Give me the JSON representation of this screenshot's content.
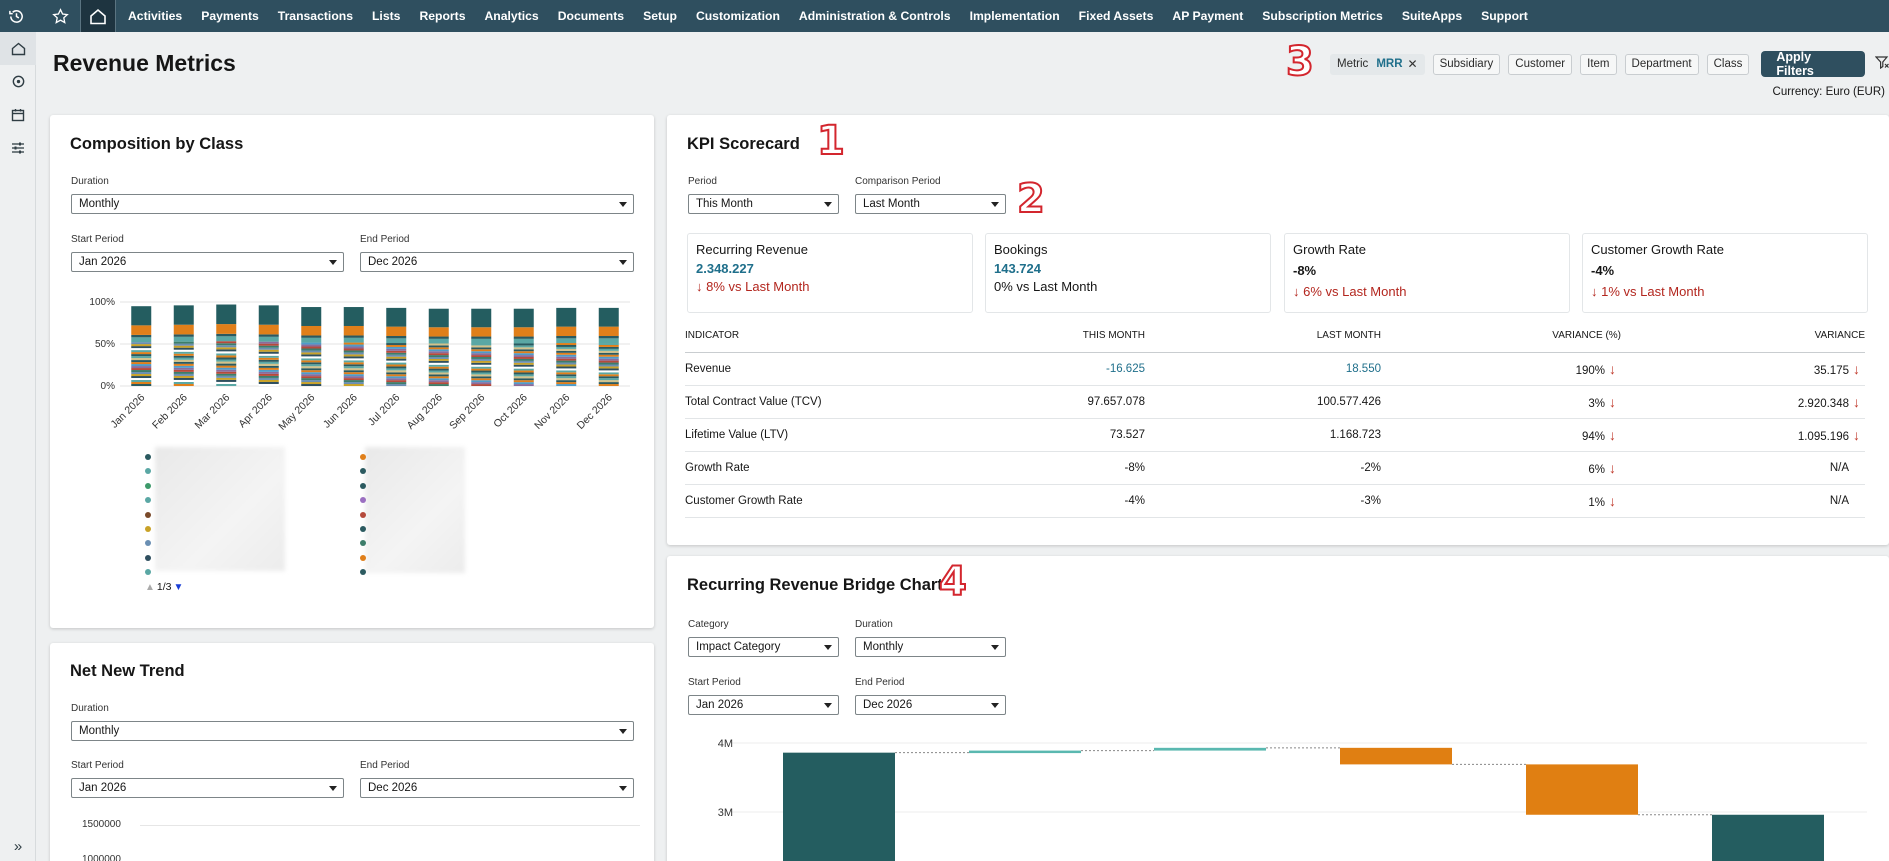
{
  "nav": {
    "menu": [
      "Activities",
      "Payments",
      "Transactions",
      "Lists",
      "Reports",
      "Analytics",
      "Documents",
      "Setup",
      "Customization",
      "Administration & Controls",
      "Implementation",
      "Fixed Assets",
      "AP Payment",
      "Subscription Metrics",
      "SuiteApps",
      "Support"
    ]
  },
  "header": {
    "title": "Revenue Metrics",
    "filters": {
      "metric_label": "Metric",
      "metric_value": "MRR",
      "chips": [
        "Subsidiary",
        "Customer",
        "Item",
        "Department",
        "Class"
      ],
      "apply_label": "Apply Filters"
    },
    "currency": "Currency: Euro (EUR)"
  },
  "annotations": [
    "1",
    "2",
    "3",
    "4"
  ],
  "composition": {
    "title": "Composition by Class",
    "duration_label": "Duration",
    "duration_value": "Monthly",
    "start_label": "Start Period",
    "start_value": "Jan 2026",
    "end_label": "End Period",
    "end_value": "Dec 2026",
    "pager": "1/3"
  },
  "net_new": {
    "title": "Net New Trend",
    "duration_label": "Duration",
    "duration_value": "Monthly",
    "start_label": "Start Period",
    "start_value": "Jan 2026",
    "end_label": "End Period",
    "end_value": "Dec 2026",
    "y_ticks": [
      "1500000",
      "1000000"
    ]
  },
  "kpi": {
    "title": "KPI Scorecard",
    "period_label": "Period",
    "period_value": "This Month",
    "comparison_label": "Comparison Period",
    "comparison_value": "Last Month",
    "cards": [
      {
        "title": "Recurring Revenue",
        "value": "2.348.227",
        "change": "↓ 8% vs Last Month"
      },
      {
        "title": "Bookings",
        "value": "143.724",
        "change": "0% vs Last Month"
      },
      {
        "title": "Growth Rate",
        "value": "-8%",
        "change": "↓ 6% vs Last Month"
      },
      {
        "title": "Customer Growth Rate",
        "value": "-4%",
        "change": "↓ 1% vs Last Month"
      }
    ],
    "columns": [
      "Indicator",
      "This Month",
      "Last Month",
      "Variance (%)",
      "Variance"
    ],
    "rows": [
      {
        "name": "Revenue",
        "this": "-16.625",
        "last": "18.550",
        "var_pct": "190%",
        "var": "35.175"
      },
      {
        "name": "Total Contract Value (TCV)",
        "this": "97.657.078",
        "last": "100.577.426",
        "var_pct": "3%",
        "var": "2.920.348"
      },
      {
        "name": "Lifetime Value (LTV)",
        "this": "73.527",
        "last": "1.168.723",
        "var_pct": "94%",
        "var": "1.095.196"
      },
      {
        "name": "Growth Rate",
        "this": "-8%",
        "last": "-2%",
        "var_pct": "6%",
        "var": "N/A"
      },
      {
        "name": "Customer Growth Rate",
        "this": "-4%",
        "last": "-3%",
        "var_pct": "1%",
        "var": "N/A"
      }
    ]
  },
  "bridge": {
    "title": "Recurring Revenue Bridge Chart",
    "category_label": "Category",
    "category_value": "Impact Category",
    "duration_label": "Duration",
    "duration_value": "Monthly",
    "start_label": "Start Period",
    "start_value": "Jan 2026",
    "end_label": "End Period",
    "end_value": "Dec 2026",
    "y_ticks": [
      "4M",
      "3M"
    ]
  },
  "chart_data": [
    {
      "type": "bar",
      "stacked": true,
      "categories": [
        "Jan 2026",
        "Feb 2026",
        "Mar 2026",
        "Apr 2026",
        "May 2026",
        "Jun 2026",
        "Jul 2026",
        "Aug 2026",
        "Sep 2026",
        "Oct 2026",
        "Nov 2026",
        "Dec 2026"
      ],
      "y_ticks": [
        "100%",
        "50%",
        "0%"
      ],
      "totals": [
        0.95,
        0.96,
        0.97,
        0.96,
        0.94,
        0.94,
        0.93,
        0.92,
        0.92,
        0.92,
        0.93,
        0.93
      ],
      "colors": [
        "#2b5a60",
        "#e07f1a",
        "#5aa7a4",
        "#ffffff",
        "#2f4f5f",
        "#c9a227",
        "#6a8fb3",
        "#3d7d6a",
        "#b54a3c",
        "#8a6d9c",
        "#4f9bc9",
        "#e07f1a",
        "#2b5a60",
        "#d3c28a",
        "#5aa7a4"
      ]
    },
    {
      "type": "waterfall",
      "y_ticks": [
        "4M",
        "3M"
      ],
      "colors": {
        "total": "#245d60",
        "increase": "#5ab8b0",
        "decrease": "#e07f12"
      },
      "bars": [
        {
          "kind": "total",
          "start": 0,
          "end": 3.86
        },
        {
          "kind": "increase",
          "start": 3.86,
          "end": 3.89
        },
        {
          "kind": "increase",
          "start": 3.89,
          "end": 3.93
        },
        {
          "kind": "decrease",
          "start": 3.93,
          "end": 3.69
        },
        {
          "kind": "decrease",
          "start": 3.69,
          "end": 2.96
        },
        {
          "kind": "total",
          "start": 0,
          "end": 2.96
        }
      ]
    }
  ]
}
